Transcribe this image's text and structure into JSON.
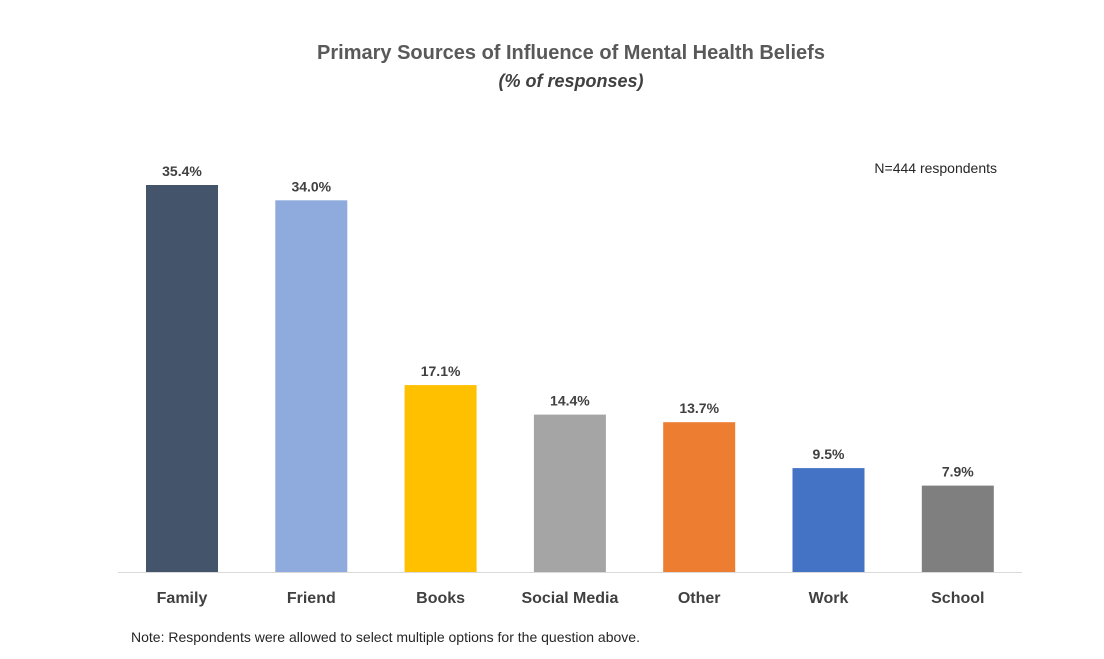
{
  "chart_data": {
    "type": "bar",
    "title": "Primary Sources of Influence of Mental Health Beliefs",
    "subtitle": "(% of responses)",
    "categories": [
      "Family",
      "Friend",
      "Books",
      "Social Media",
      "Other",
      "Work",
      "School"
    ],
    "values": [
      35.4,
      34.0,
      17.1,
      14.4,
      13.7,
      9.5,
      7.9
    ],
    "data_labels": [
      "35.4%",
      "34.0%",
      "17.1%",
      "14.4%",
      "13.7%",
      "9.5%",
      "7.9%"
    ],
    "colors": [
      "#44546a",
      "#8faadc",
      "#ffc000",
      "#a5a5a5",
      "#ed7d31",
      "#4472c4",
      "#7f7f7f"
    ],
    "xlabel": "",
    "ylabel": "",
    "ylim": [
      0,
      35.4
    ],
    "grid": false,
    "legend": "none",
    "annotation": "N=444 respondents",
    "note": "Note: Respondents were allowed to select multiple options for the question above."
  }
}
